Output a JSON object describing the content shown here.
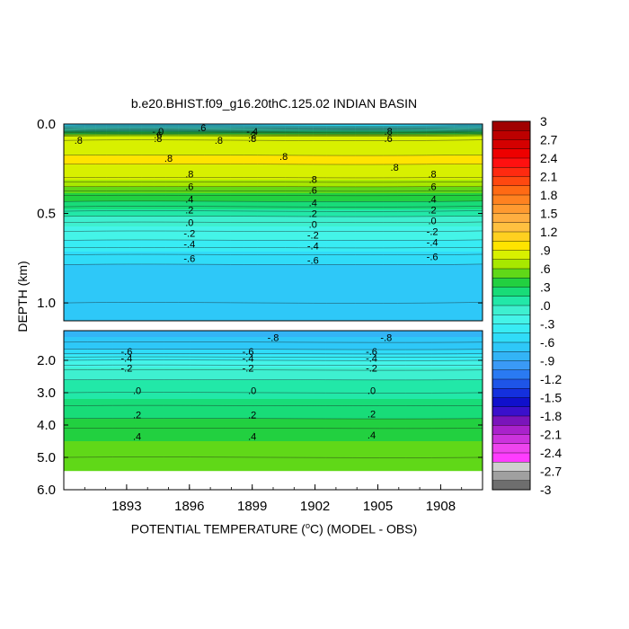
{
  "chart_data": {
    "type": "heatmap",
    "title": "b.e20.BHIST.f09_g16.20thC.125.02 INDIAN BASIN",
    "xlabel_pre": "POTENTIAL TEMPERATURE (",
    "xlabel_deg": "o",
    "xlabel_post": "C) (MODEL - OBS)",
    "ylabel": "DEPTH (km)",
    "x_ticks": [
      "1893",
      "1896",
      "1899",
      "1902",
      "1905",
      "1908"
    ],
    "x_tick_values": [
      1893,
      1896,
      1899,
      1902,
      1905,
      1908
    ],
    "xlim": [
      1890,
      1910
    ],
    "upper_panel": {
      "ylim": [
        0.0,
        1.1
      ],
      "y_ticks": [
        "0.0",
        "0.5",
        "1.0"
      ],
      "y_tick_values": [
        0.0,
        0.5,
        1.0
      ]
    },
    "lower_panel": {
      "ylim": [
        1.1,
        6.0
      ],
      "y_ticks": [
        "2.0",
        "3.0",
        "4.0",
        "5.0",
        "6.0"
      ],
      "y_tick_values": [
        2.0,
        3.0,
        4.0,
        5.0,
        6.0
      ]
    },
    "colorbar_labels": [
      "3",
      "2.7",
      "2.4",
      "2.1",
      "1.8",
      "1.5",
      "1.2",
      ".9",
      ".6",
      ".3",
      ".0",
      "-.3",
      "-.6",
      "-.9",
      "-1.2",
      "-1.5",
      "-1.8",
      "-2.1",
      "-2.4",
      "-2.7",
      "-3"
    ],
    "colorbar_values": [
      3,
      2.7,
      2.4,
      2.1,
      1.8,
      1.5,
      1.2,
      0.9,
      0.6,
      0.3,
      0.0,
      -0.3,
      -0.6,
      -0.9,
      -1.2,
      -1.5,
      -1.8,
      -2.1,
      -2.4,
      -2.7,
      -3
    ],
    "upper_profile": {
      "depth": [
        0.0,
        0.02,
        0.05,
        0.07,
        0.1,
        0.15,
        0.2,
        0.25,
        0.3,
        0.35,
        0.4,
        0.45,
        0.5,
        0.55,
        0.6,
        0.65,
        0.7,
        0.75,
        0.8,
        0.9,
        1.0,
        1.1
      ],
      "value": [
        -0.7,
        -0.3,
        0.4,
        0.75,
        0.82,
        0.88,
        0.92,
        0.88,
        0.8,
        0.6,
        0.4,
        0.25,
        0.05,
        -0.1,
        -0.2,
        -0.3,
        -0.42,
        -0.55,
        -0.62,
        -0.68,
        -0.7,
        -0.72
      ]
    },
    "lower_profile": {
      "depth": [
        1.1,
        1.3,
        1.6,
        1.8,
        2.0,
        2.3,
        2.6,
        3.0,
        3.4,
        3.8,
        4.1,
        4.5,
        5.0,
        5.4
      ],
      "value": [
        -0.8,
        -0.75,
        -0.65,
        -0.5,
        -0.3,
        -0.1,
        0.0,
        0.1,
        0.2,
        0.3,
        0.4,
        0.45,
        0.5,
        0.5
      ]
    },
    "contour_labels": [
      {
        "panel": "upper",
        "text": ".6",
        "x": 1896.6,
        "depth": 0.02
      },
      {
        "panel": "upper",
        "text": ".8",
        "x": 1890.7,
        "depth": 0.09
      },
      {
        "panel": "upper",
        "text": "-.0",
        "x": 1894.5,
        "depth": 0.04
      },
      {
        "panel": "upper",
        "text": ".6",
        "x": 1894.5,
        "depth": 0.06
      },
      {
        "panel": "upper",
        "text": ".8",
        "x": 1894.5,
        "depth": 0.08
      },
      {
        "panel": "upper",
        "text": ".8",
        "x": 1897.4,
        "depth": 0.09
      },
      {
        "panel": "upper",
        "text": "-.4",
        "x": 1899.0,
        "depth": 0.04
      },
      {
        "panel": "upper",
        "text": ".2",
        "x": 1899.0,
        "depth": 0.06
      },
      {
        "panel": "upper",
        "text": ".8",
        "x": 1899.0,
        "depth": 0.08
      },
      {
        "panel": "upper",
        "text": ".8",
        "x": 1905.5,
        "depth": 0.04
      },
      {
        "panel": "upper",
        "text": ".6",
        "x": 1905.5,
        "depth": 0.08
      },
      {
        "panel": "upper",
        "text": ".8",
        "x": 1895.0,
        "depth": 0.19
      },
      {
        "panel": "upper",
        "text": ".8",
        "x": 1900.5,
        "depth": 0.18
      },
      {
        "panel": "upper",
        "text": ".8",
        "x": 1905.8,
        "depth": 0.24
      },
      {
        "panel": "upper",
        "text": ".8",
        "x": 1896.0,
        "depth": 0.28
      },
      {
        "panel": "upper",
        "text": ".6",
        "x": 1896.0,
        "depth": 0.35
      },
      {
        "panel": "upper",
        "text": ".4",
        "x": 1896.0,
        "depth": 0.42
      },
      {
        "panel": "upper",
        "text": ".2",
        "x": 1896.0,
        "depth": 0.48
      },
      {
        "panel": "upper",
        "text": ".0",
        "x": 1896.0,
        "depth": 0.55
      },
      {
        "panel": "upper",
        "text": "-.2",
        "x": 1896.0,
        "depth": 0.61
      },
      {
        "panel": "upper",
        "text": "-.4",
        "x": 1896.0,
        "depth": 0.67
      },
      {
        "panel": "upper",
        "text": "-.6",
        "x": 1896.0,
        "depth": 0.75
      },
      {
        "panel": "upper",
        "text": ".8",
        "x": 1901.9,
        "depth": 0.31
      },
      {
        "panel": "upper",
        "text": ".6",
        "x": 1901.9,
        "depth": 0.37
      },
      {
        "panel": "upper",
        "text": ".4",
        "x": 1901.9,
        "depth": 0.44
      },
      {
        "panel": "upper",
        "text": ".2",
        "x": 1901.9,
        "depth": 0.5
      },
      {
        "panel": "upper",
        "text": ".0",
        "x": 1901.9,
        "depth": 0.56
      },
      {
        "panel": "upper",
        "text": "-.2",
        "x": 1901.9,
        "depth": 0.62
      },
      {
        "panel": "upper",
        "text": "-.4",
        "x": 1901.9,
        "depth": 0.68
      },
      {
        "panel": "upper",
        "text": "-.6",
        "x": 1901.9,
        "depth": 0.76
      },
      {
        "panel": "upper",
        "text": ".8",
        "x": 1907.6,
        "depth": 0.28
      },
      {
        "panel": "upper",
        "text": ".6",
        "x": 1907.6,
        "depth": 0.35
      },
      {
        "panel": "upper",
        "text": ".4",
        "x": 1907.6,
        "depth": 0.42
      },
      {
        "panel": "upper",
        "text": ".2",
        "x": 1907.6,
        "depth": 0.48
      },
      {
        "panel": "upper",
        "text": ".0",
        "x": 1907.6,
        "depth": 0.54
      },
      {
        "panel": "upper",
        "text": "-.2",
        "x": 1907.6,
        "depth": 0.6
      },
      {
        "panel": "upper",
        "text": "-.4",
        "x": 1907.6,
        "depth": 0.66
      },
      {
        "panel": "upper",
        "text": "-.6",
        "x": 1907.6,
        "depth": 0.74
      },
      {
        "panel": "lower",
        "text": "-.8",
        "x": 1900.0,
        "depth": 1.3
      },
      {
        "panel": "lower",
        "text": "-.8",
        "x": 1905.4,
        "depth": 1.3
      },
      {
        "panel": "lower",
        "text": "-.6",
        "x": 1893.0,
        "depth": 1.73
      },
      {
        "panel": "lower",
        "text": "-.4",
        "x": 1893.0,
        "depth": 1.93
      },
      {
        "panel": "lower",
        "text": "-.2",
        "x": 1893.0,
        "depth": 2.23
      },
      {
        "panel": "lower",
        "text": ".0",
        "x": 1893.5,
        "depth": 2.93
      },
      {
        "panel": "lower",
        "text": ".2",
        "x": 1893.5,
        "depth": 3.68
      },
      {
        "panel": "lower",
        "text": ".4",
        "x": 1893.5,
        "depth": 4.35
      },
      {
        "panel": "lower",
        "text": "-.6",
        "x": 1898.8,
        "depth": 1.73
      },
      {
        "panel": "lower",
        "text": "-.4",
        "x": 1898.8,
        "depth": 1.93
      },
      {
        "panel": "lower",
        "text": "-.2",
        "x": 1898.8,
        "depth": 2.23
      },
      {
        "panel": "lower",
        "text": ".0",
        "x": 1899.0,
        "depth": 2.93
      },
      {
        "panel": "lower",
        "text": ".2",
        "x": 1899.0,
        "depth": 3.68
      },
      {
        "panel": "lower",
        "text": ".4",
        "x": 1899.0,
        "depth": 4.35
      },
      {
        "panel": "lower",
        "text": "-.6",
        "x": 1904.7,
        "depth": 1.73
      },
      {
        "panel": "lower",
        "text": "-.4",
        "x": 1904.7,
        "depth": 1.93
      },
      {
        "panel": "lower",
        "text": "-.2",
        "x": 1904.7,
        "depth": 2.23
      },
      {
        "panel": "lower",
        "text": ".0",
        "x": 1904.7,
        "depth": 2.93
      },
      {
        "panel": "lower",
        "text": ".2",
        "x": 1904.7,
        "depth": 3.65
      },
      {
        "panel": "lower",
        "text": ".4",
        "x": 1904.7,
        "depth": 4.3
      }
    ],
    "grid": false,
    "legend": "colorbar-right"
  }
}
